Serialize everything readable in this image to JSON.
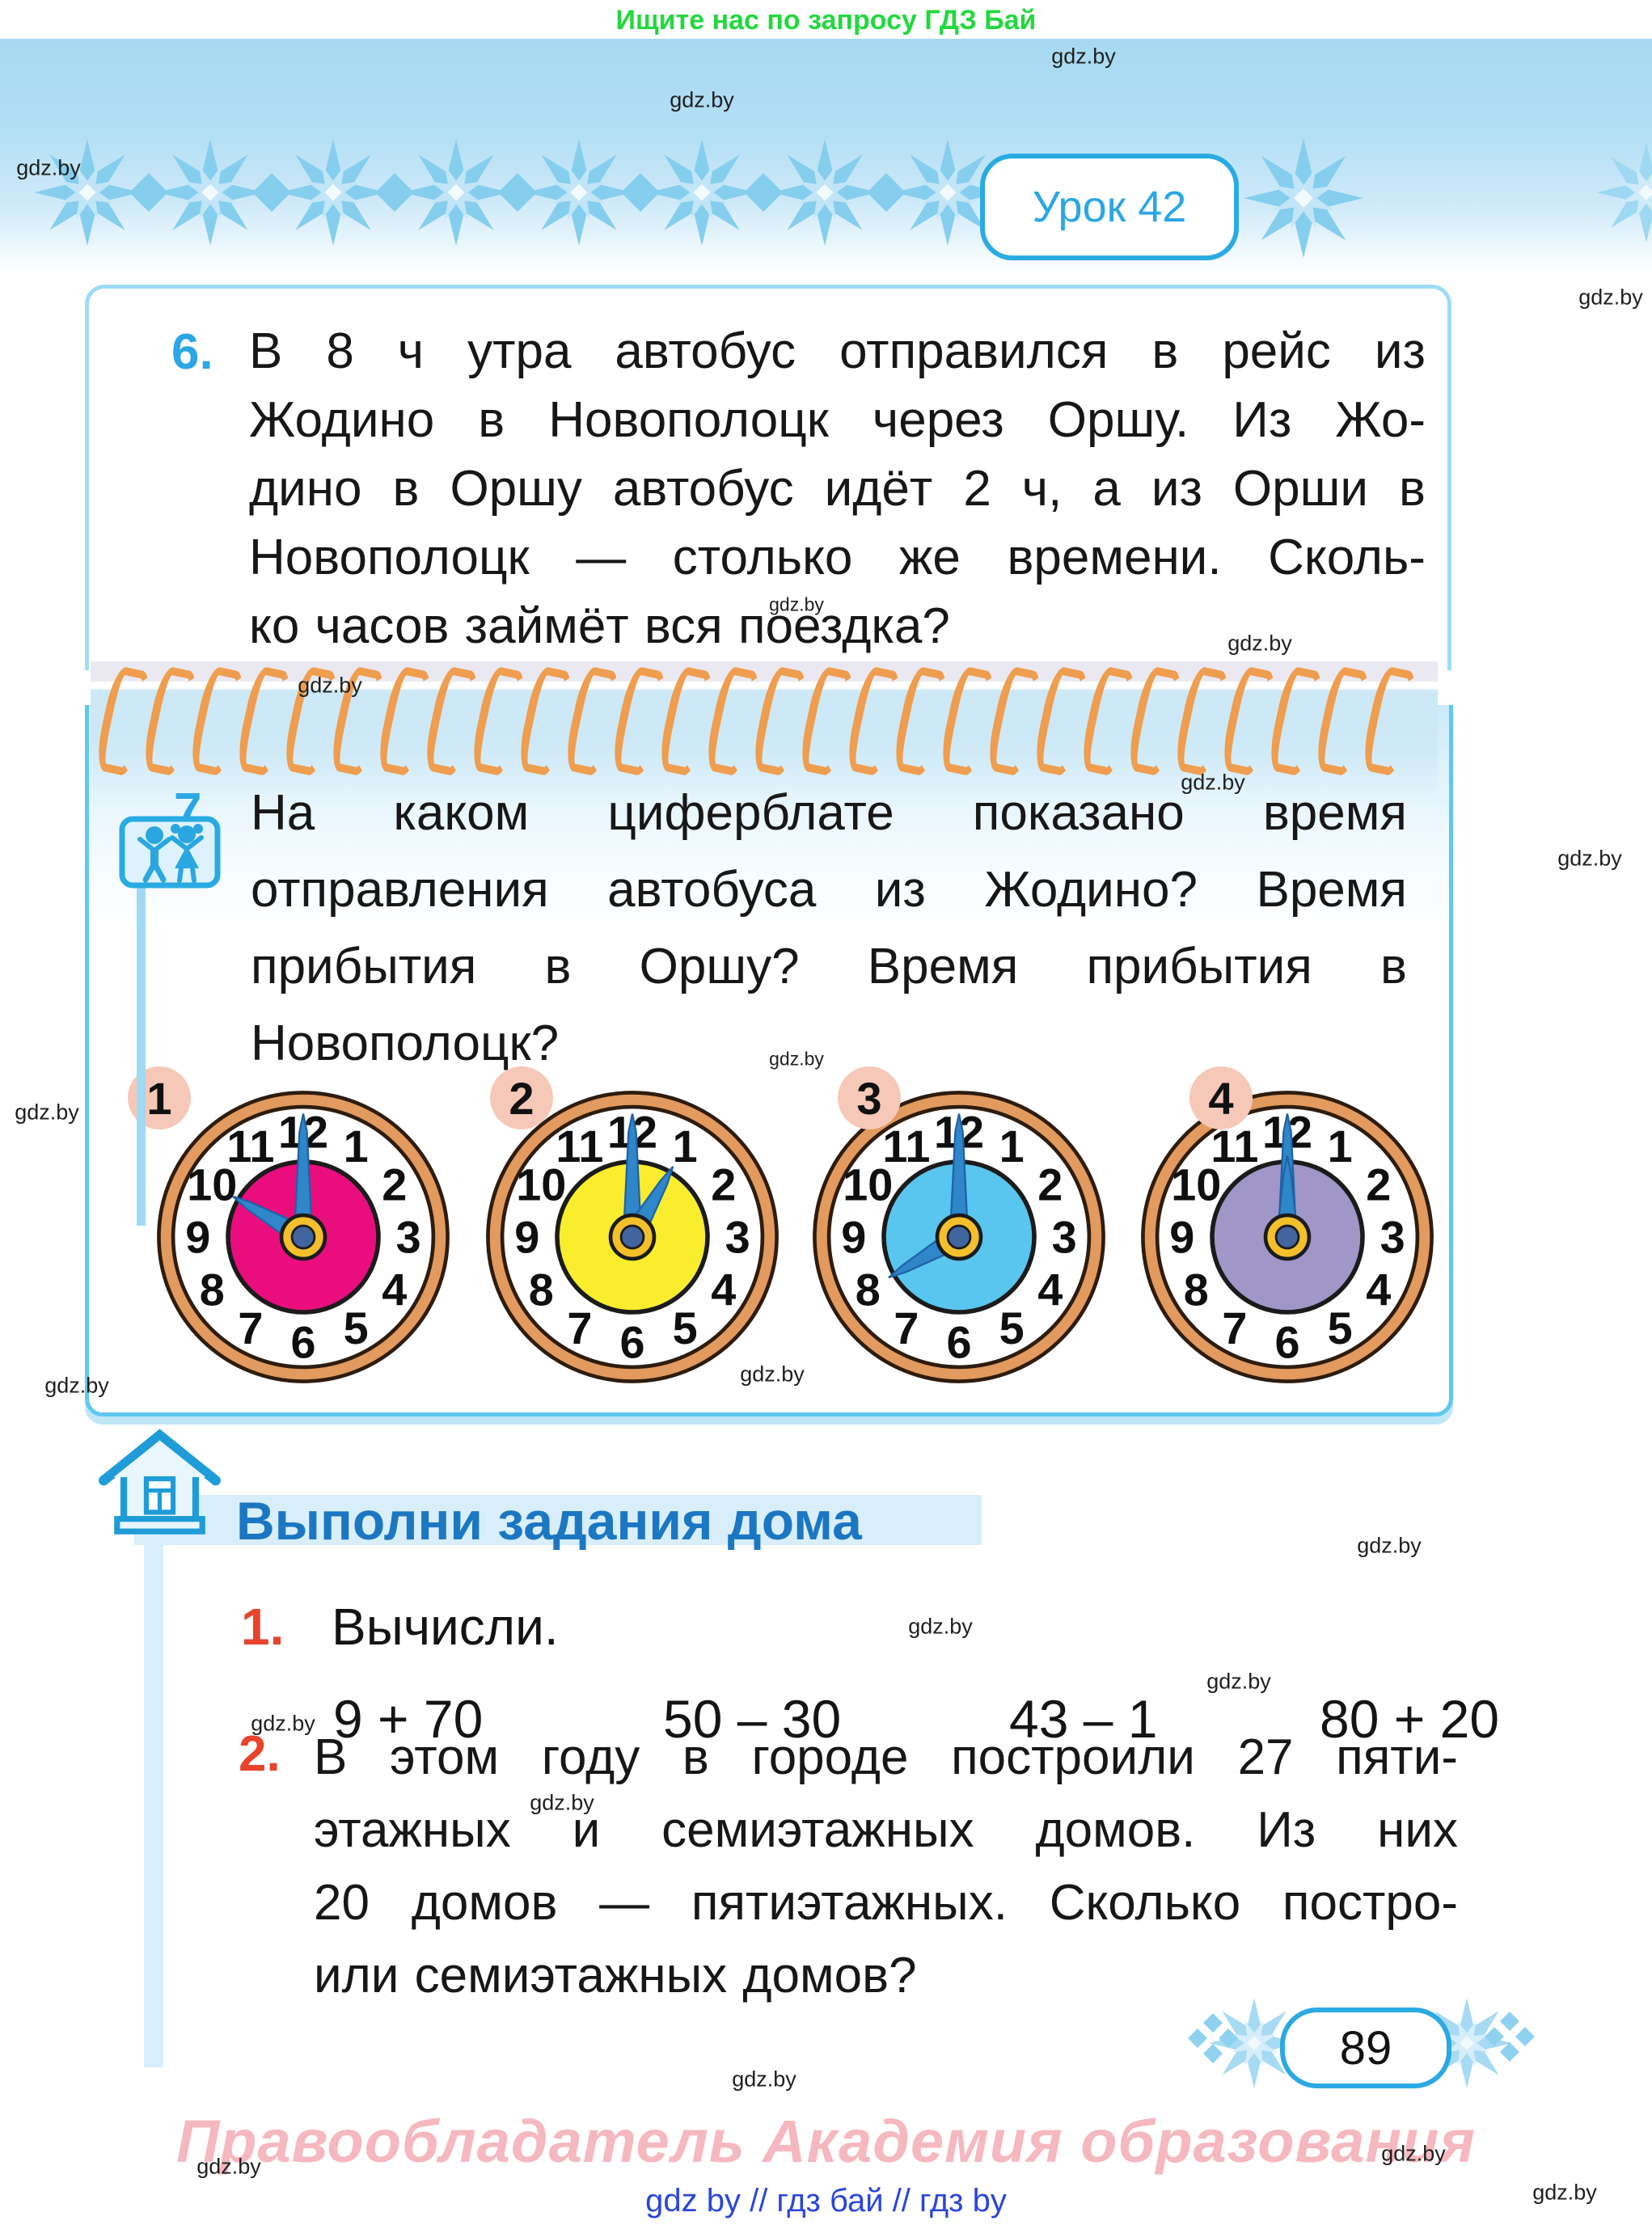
{
  "page": {
    "title_note": "Ищите нас по запросу ГДЗ Бай"
  },
  "header": {
    "lesson_badge": "Урок 42"
  },
  "watermark_label": "gdz.by",
  "problems": {
    "p6": {
      "number": "6.",
      "lines": [
        "В 8 ч утра автобус отправился в рейс из",
        "Жодино в Новополоцк через Оршу. Из Жо-",
        "дино в Оршу автобус идёт 2 ч, а из Орши в",
        "Новополоцк — столько же времени. Сколь-",
        "ко часов займёт вся поездка?"
      ]
    },
    "p7": {
      "number": "7.",
      "lines": [
        "На каком циферблате показано время",
        "отправления автобуса из Жодино? Время",
        "прибытия в Оршу? Время прибытия в",
        "Новополоцк?"
      ]
    }
  },
  "clocks": [
    {
      "label": "1",
      "time": "10:00",
      "hour": 10,
      "minute": 0,
      "face_color": "#ea0d7e"
    },
    {
      "label": "2",
      "time": "1:00",
      "hour": 1,
      "minute": 0,
      "face_color": "#f9ed2e"
    },
    {
      "label": "3",
      "time": "8:00",
      "hour": 8,
      "minute": 0,
      "face_color": "#58c6ee"
    },
    {
      "label": "4",
      "time": "12:00",
      "hour": 12,
      "minute": 0,
      "face_color": "#a096c8"
    }
  ],
  "homework": {
    "title": "Выполни задания дома",
    "task1": {
      "number": "1.",
      "label": "Вычисли.",
      "expressions": [
        "9 + 70",
        "50 – 30",
        "43 – 1",
        "80 + 20"
      ]
    },
    "task2": {
      "number": "2.",
      "lines": [
        "В этом году в городе построили 27 пяти-",
        "этажных и семиэтажных домов. Из них",
        "20 домов — пятиэтажных. Сколько постро-",
        "или семиэтажных домов?"
      ]
    }
  },
  "footer": {
    "page_number": "89",
    "copyright": "Правообладатель Академия образования",
    "links": "gdz by  //  гдз бай  //  гдз by"
  },
  "colors": {
    "accent_blue": "#29abe2",
    "title_blue": "#1c77c3",
    "task_red": "#e8432c",
    "promo_green": "#23d83e",
    "label_pink": "#f6c8b8",
    "copyright_pink": "#f5b8be",
    "link_blue": "#2b46d8",
    "spiral_orange": "#ef9d4f",
    "clock_ring": "#e29a5e",
    "hand_blue": "#2f86c9",
    "knob_yellow": "#f3c02c"
  }
}
